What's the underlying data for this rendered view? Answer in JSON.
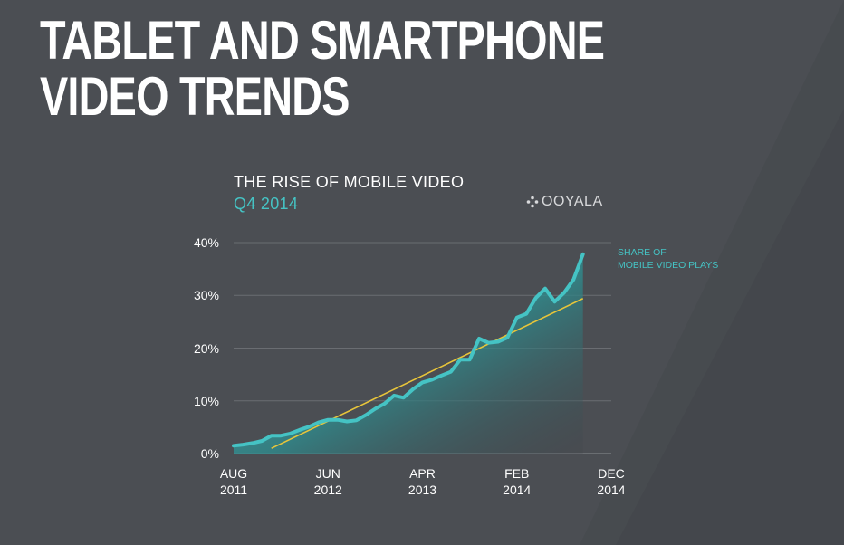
{
  "slide": {
    "title_line1": "TABLET AND SMARTPHONE",
    "title_line2": "VIDEO TRENDS",
    "brand": "OOYALA",
    "colors": {
      "background": "#4b4e53",
      "accent": "#45c3c4",
      "trend": "#e8c53a",
      "text": "#ffffff"
    }
  },
  "chart_data": {
    "type": "area",
    "title": "THE RISE OF MOBILE VIDEO",
    "subtitle": "Q4 2014",
    "ylim": [
      0,
      40
    ],
    "yticks": [
      0,
      10,
      20,
      30,
      40
    ],
    "ytick_labels": [
      "0%",
      "10%",
      "20%",
      "30%",
      "40%"
    ],
    "x_range": [
      "2011-08",
      "2014-12"
    ],
    "xtick_labels": [
      {
        "x": "2011-08",
        "line1": "AUG",
        "line2": "2011"
      },
      {
        "x": "2012-06",
        "line1": "JUN",
        "line2": "2012"
      },
      {
        "x": "2013-04",
        "line1": "APR",
        "line2": "2013"
      },
      {
        "x": "2014-02",
        "line1": "FEB",
        "line2": "2014"
      },
      {
        "x": "2014-12",
        "line1": "DEC",
        "line2": "2014"
      }
    ],
    "grid": true,
    "series": [
      {
        "name": "SHARE OF MOBILE VIDEO PLAYS",
        "name_line1": "SHARE OF",
        "name_line2": "MOBILE VIDEO PLAYS",
        "color": "#45c3c4",
        "points": [
          [
            "2011-08",
            1.5
          ],
          [
            "2011-09",
            1.7
          ],
          [
            "2011-10",
            2.0
          ],
          [
            "2011-11",
            2.4
          ],
          [
            "2011-12",
            3.4
          ],
          [
            "2012-01",
            3.4
          ],
          [
            "2012-02",
            3.8
          ],
          [
            "2012-03",
            4.5
          ],
          [
            "2012-04",
            5.1
          ],
          [
            "2012-05",
            5.9
          ],
          [
            "2012-06",
            6.4
          ],
          [
            "2012-07",
            6.4
          ],
          [
            "2012-08",
            6.1
          ],
          [
            "2012-09",
            6.3
          ],
          [
            "2012-10",
            7.3
          ],
          [
            "2012-11",
            8.5
          ],
          [
            "2012-12",
            9.5
          ],
          [
            "2013-01",
            11.0
          ],
          [
            "2013-02",
            10.6
          ],
          [
            "2013-03",
            12.2
          ],
          [
            "2013-04",
            13.5
          ],
          [
            "2013-05",
            14.0
          ],
          [
            "2013-06",
            14.8
          ],
          [
            "2013-07",
            15.5
          ],
          [
            "2013-08",
            17.8
          ],
          [
            "2013-09",
            17.8
          ],
          [
            "2013-10",
            21.8
          ],
          [
            "2013-11",
            21.0
          ],
          [
            "2013-12",
            21.2
          ],
          [
            "2014-01",
            22.0
          ],
          [
            "2014-02",
            25.8
          ],
          [
            "2014-03",
            26.5
          ],
          [
            "2014-04",
            29.5
          ],
          [
            "2014-05",
            31.3
          ],
          [
            "2014-06",
            28.8
          ],
          [
            "2014-07",
            30.5
          ],
          [
            "2014-08",
            33.0
          ],
          [
            "2014-09",
            37.8
          ]
        ]
      }
    ],
    "trendline": {
      "color": "#e8c53a",
      "start": [
        "2011-12",
        1.0
      ],
      "end": [
        "2014-09",
        29.4
      ]
    }
  }
}
